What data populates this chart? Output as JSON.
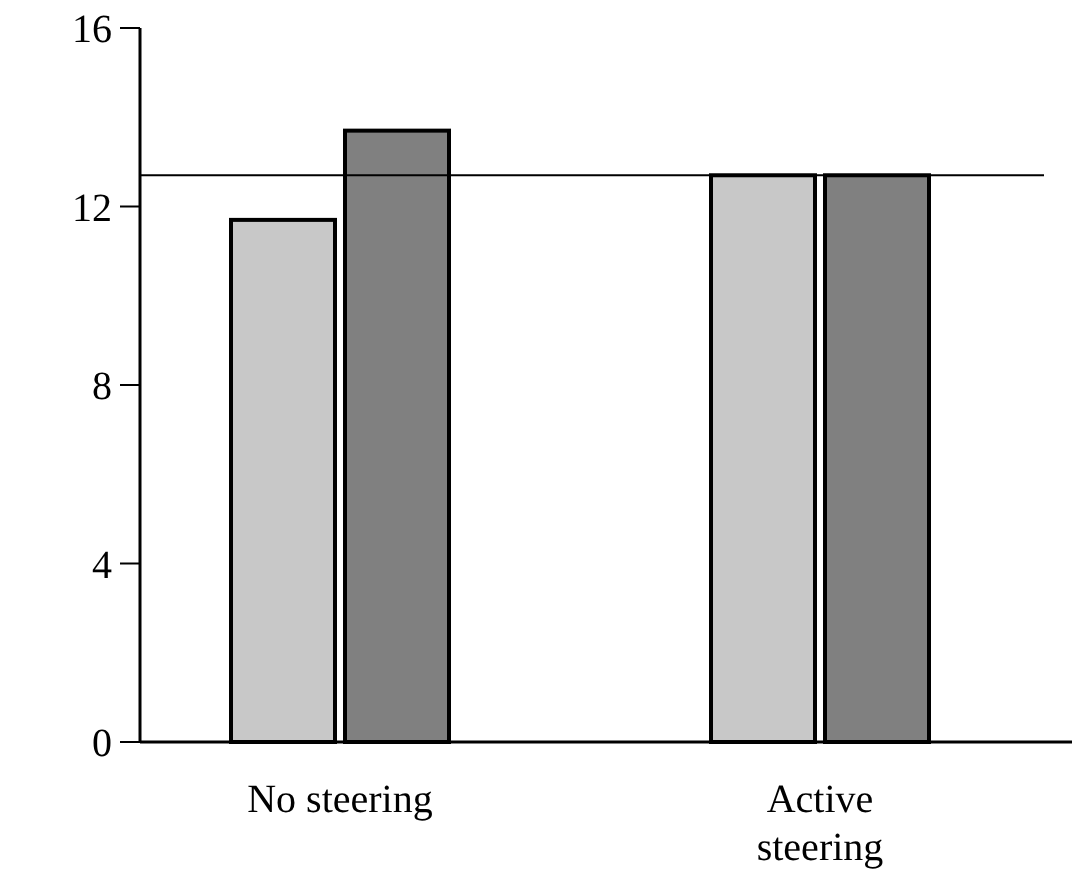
{
  "chart_data": {
    "type": "bar",
    "categories": [
      "No steering",
      "Active steering"
    ],
    "series": [
      {
        "color": "#c8c8c8",
        "values": [
          11.7,
          12.7
        ]
      },
      {
        "color": "#808080",
        "values": [
          13.7,
          12.7
        ]
      }
    ],
    "ylim": [
      0,
      16
    ],
    "yticks": [
      0,
      4,
      8,
      12,
      16
    ],
    "grid": false,
    "ref_lines": [
      {
        "axis": "y",
        "value": 12.7,
        "color": "#000000"
      }
    ]
  }
}
